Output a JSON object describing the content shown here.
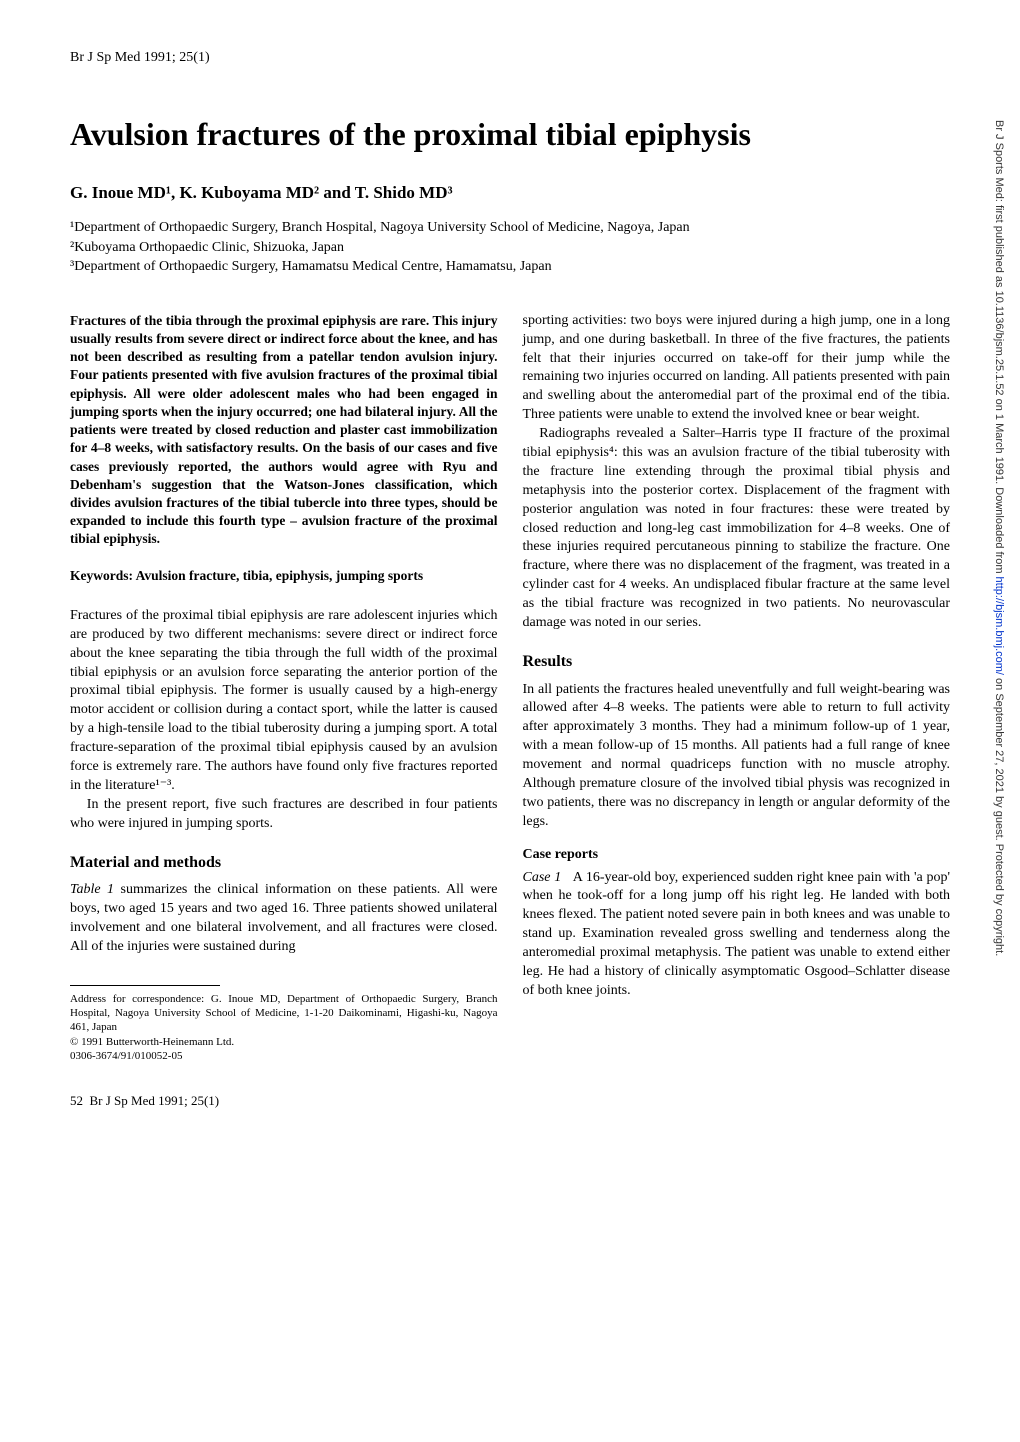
{
  "header": {
    "citation": "Br J Sp Med 1991; 25(1)"
  },
  "article": {
    "title": "Avulsion fractures of the proximal tibial epiphysis",
    "authors": "G. Inoue MD¹, K. Kuboyama MD² and T. Shido MD³",
    "affiliations": {
      "aff1": "¹Department of Orthopaedic Surgery, Branch Hospital, Nagoya University School of Medicine, Nagoya, Japan",
      "aff2": "²Kuboyama Orthopaedic Clinic, Shizuoka, Japan",
      "aff3": "³Department of Orthopaedic Surgery, Hamamatsu Medical Centre, Hamamatsu, Japan"
    }
  },
  "left_column": {
    "abstract": "Fractures of the tibia through the proximal epiphysis are rare. This injury usually results from severe direct or indirect force about the knee, and has not been described as resulting from a patellar tendon avulsion injury. Four patients presented with five avulsion fractures of the proximal tibial epiphysis. All were older adolescent males who had been engaged in jumping sports when the injury occurred; one had bilateral injury. All the patients were treated by closed reduction and plaster cast immobilization for 4–8 weeks, with satisfactory results. On the basis of our cases and five cases previously reported, the authors would agree with Ryu and Debenham's suggestion that the Watson-Jones classification, which divides avulsion fractures of the tibial tubercle into three types, should be expanded to include this fourth type – avulsion fracture of the proximal tibial epiphysis.",
    "keywords": "Keywords: Avulsion fracture, tibia, epiphysis, jumping sports",
    "intro_p1": "Fractures of the proximal tibial epiphysis are rare adolescent injuries which are produced by two different mechanisms: severe direct or indirect force about the knee separating the tibia through the full width of the proximal tibial epiphysis or an avulsion force separating the anterior portion of the proximal tibial epiphysis. The former is usually caused by a high-energy motor accident or collision during a contact sport, while the latter is caused by a high-tensile load to the tibial tuberosity during a jumping sport. A total fracture-separation of the proximal tibial epiphysis caused by an avulsion force is extremely rare. The authors have found only five fractures reported in the literature¹⁻³.",
    "intro_p2": "In the present report, five such fractures are described in four patients who were injured in jumping sports.",
    "methods_heading": "Material and methods",
    "methods_p1": "Table 1 summarizes the clinical information on these patients. All were boys, two aged 15 years and two aged 16. Three patients showed unilateral involvement and one bilateral involvement, and all fractures were closed. All of the injuries were sustained during",
    "footnote_address": "Address for correspondence: G. Inoue MD, Department of Orthopaedic Surgery, Branch Hospital, Nagoya University School of Medicine, 1-1-20 Daikominami, Higashi-ku, Nagoya 461, Japan",
    "footnote_copyright": "© 1991 Butterworth-Heinemann Ltd.",
    "footnote_code": "0306-3674/91/010052-05"
  },
  "right_column": {
    "methods_cont_p1": "sporting activities: two boys were injured during a high jump, one in a long jump, and one during basketball. In three of the five fractures, the patients felt that their injuries occurred on take-off for their jump while the remaining two injuries occurred on landing. All patients presented with pain and swelling about the anteromedial part of the proximal end of the tibia. Three patients were unable to extend the involved knee or bear weight.",
    "methods_cont_p2": "Radiographs revealed a Salter–Harris type II fracture of the proximal tibial epiphysis⁴: this was an avulsion fracture of the tibial tuberosity with the fracture line extending through the proximal tibial physis and metaphysis into the posterior cortex. Displacement of the fragment with posterior angulation was noted in four fractures: these were treated by closed reduction and long-leg cast immobilization for 4–8 weeks. One of these injuries required percutaneous pinning to stabilize the fracture. One fracture, where there was no displacement of the fragment, was treated in a cylinder cast for 4 weeks. An undisplaced fibular fracture at the same level as the tibial fracture was recognized in two patients. No neurovascular damage was noted in our series.",
    "results_heading": "Results",
    "results_p1": "In all patients the fractures healed uneventfully and full weight-bearing was allowed after 4–8 weeks. The patients were able to return to full activity after approximately 3 months. They had a minimum follow-up of 1 year, with a mean follow-up of 15 months. All patients had a full range of knee movement and normal quadriceps function with no muscle atrophy. Although premature closure of the involved tibial physis was recognized in two patients, there was no discrepancy in length or angular deformity of the legs.",
    "case_reports_heading": "Case reports",
    "case1_label": "Case 1",
    "case1_text": "A 16-year-old boy, experienced sudden right knee pain with 'a pop' when he took-off for a long jump off his right leg. He landed with both knees flexed. The patient noted severe pain in both knees and was unable to stand up. Examination revealed gross swelling and tenderness along the anteromedial proximal metaphysis. The patient was unable to extend either leg. He had a history of clinically asymptomatic Osgood–Schlatter disease of both knee joints."
  },
  "footer": {
    "page_number": "52",
    "citation": "Br J Sp Med 1991; 25(1)"
  },
  "vertical_sidebar": {
    "text_before": "Br J Sports Med: first published as 10.1136/bjsm.25.1.52 on 1 March 1991. Downloaded from ",
    "link": "http://bjsm.bmj.com/",
    "text_after": " on September 27, 2021 by guest. Protected by copyright."
  },
  "styles": {
    "body_bg": "#ffffff",
    "text_color": "#000000",
    "title_fontsize": 32,
    "body_fontsize": 14,
    "link_color": "#0033cc"
  }
}
